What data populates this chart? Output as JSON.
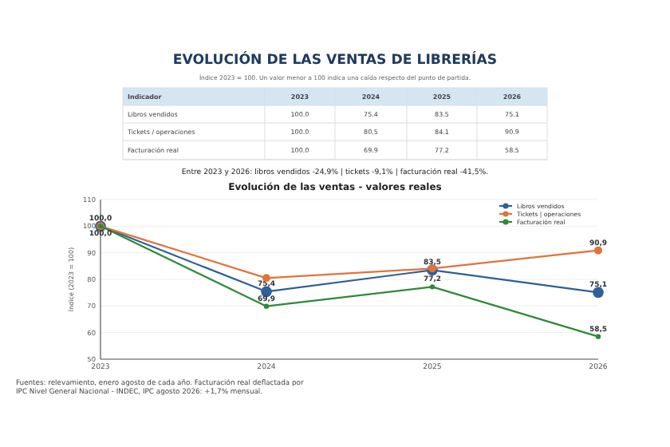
{
  "chart_data": {
    "type": "line",
    "title": "Evolución de las ventas - valores reales",
    "ylabel": "Índice (2023 = 100)",
    "categories": [
      "2023",
      "2024",
      "2025",
      "2026"
    ],
    "series": [
      {
        "name": "Libros vendidos",
        "color": "#2f5f98",
        "values": [
          100,
          75.4,
          83.5,
          75.1
        ],
        "value_labels": [
          "100,0",
          "75,4",
          "83,5",
          "75,1"
        ]
      },
      {
        "name": "Tickets | operaciones",
        "color": "#e0733a",
        "values": [
          100,
          80.5,
          84.1,
          90.9
        ],
        "value_labels": [
          null,
          null,
          null,
          "90,9"
        ]
      },
      {
        "name": "Facturación real",
        "color": "#2e8a36",
        "values": [
          100,
          69.9,
          77.2,
          58.5
        ],
        "value_labels": [
          "100,0",
          "69,9",
          "77,2",
          "58,5"
        ]
      }
    ],
    "ylim": [
      50,
      110
    ],
    "yticks": [
      50,
      60,
      70,
      80,
      90,
      100,
      110
    ],
    "grid": "y",
    "legend": "top right",
    "marker": "circle",
    "annotations": [
      "EVOLUCIÓN DE LAS VENTAS DE LIBRERÍAS",
      "Índice 2023 = 100. Un valor menor a 100 indica una caída respecto del punto de partida.",
      "Indicador",
      "2023",
      "2024",
      "2025",
      "2026",
      "Libros vendidos",
      "100.0",
      "75.4",
      "83.5",
      "75.1",
      "Tickets / operaciones",
      "100.0",
      "80.5",
      "84.1",
      "90.9",
      "Facturación real",
      "100.0",
      "69.9",
      "77.2",
      "58.5",
      "Entre 2023 y 2026: libros vendidos -24,9% | tickets -9,1% | facturación real -41,5%.",
      "Fuentes: relevamiento, enero agosto de cada año. Facturación real deflactada por IPC Nivel General Nacional - INDEC, IPC agosto 2026: +1,7% mensual."
    ]
  }
}
